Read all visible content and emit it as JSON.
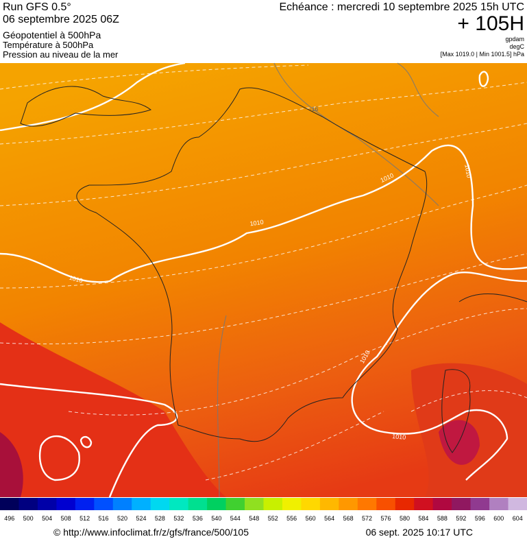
{
  "header": {
    "run": "Run GFS 0.5°",
    "date": "06 septembre 2025 06Z",
    "field1": "Géopotentiel à 500hPa",
    "field2": "Température à 500hPa",
    "field3": "Pression au niveau de la mer",
    "echeance": "Echéance : mercredi 10 septembre 2025 15h UTC",
    "lead": "+ 105H",
    "unit1": "gpdam",
    "unit2": "degC",
    "range": "[Max 1019.0 | Min 1001.5] hPa"
  },
  "map": {
    "contour_labels": [
      "1010",
      "1010",
      "1010",
      "1010",
      "1010",
      "1010",
      "-16"
    ]
  },
  "colorbar": {
    "labels": [
      496,
      500,
      504,
      508,
      512,
      516,
      520,
      524,
      528,
      532,
      536,
      540,
      544,
      548,
      552,
      556,
      560,
      564,
      568,
      572,
      576,
      580,
      584,
      588,
      592,
      596,
      600,
      604
    ],
    "colors": [
      "#00005a",
      "#000080",
      "#0000a8",
      "#0000d0",
      "#0020f0",
      "#0050ff",
      "#0080ff",
      "#00b0ff",
      "#00d8f0",
      "#00e8c0",
      "#00e090",
      "#00d060",
      "#40d030",
      "#90e020",
      "#c8f000",
      "#f0f000",
      "#ffd800",
      "#ffb800",
      "#ff9800",
      "#ff7800",
      "#f85000",
      "#e82800",
      "#d01020",
      "#b00840",
      "#901860",
      "#903a90",
      "#b080c0",
      "#d0b8e0"
    ]
  },
  "footer": {
    "url": "© http://www.infoclimat.fr/z/gfs/france/500/105",
    "timestamp": "06 sept. 2025 10:17 UTC"
  }
}
